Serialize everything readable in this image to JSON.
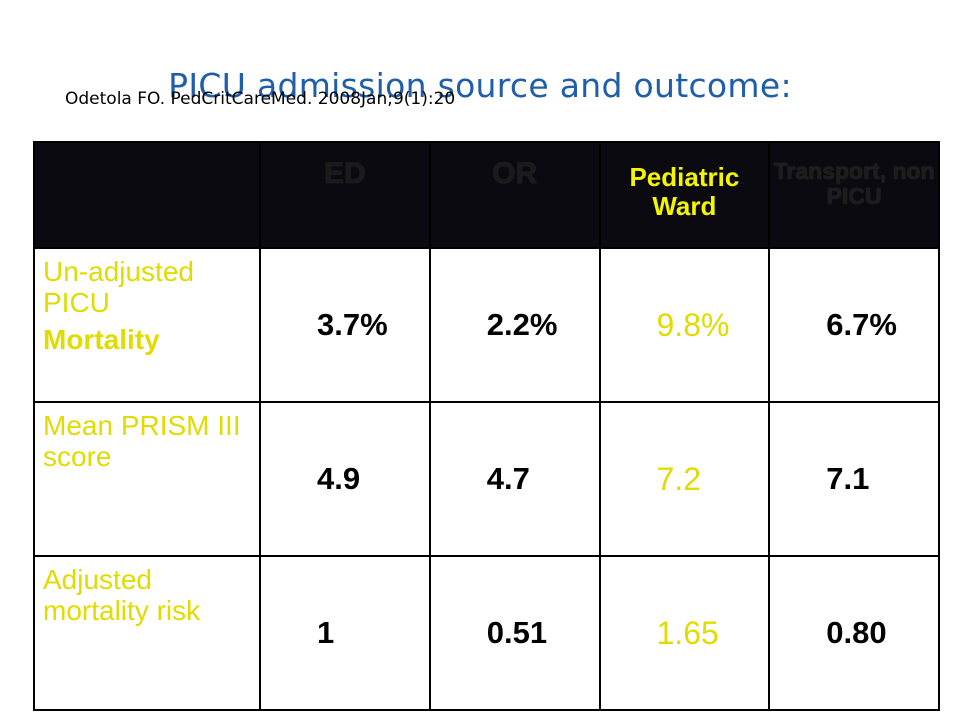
{
  "title": "PICU admission source and outcome:",
  "citation": "Odetola FO. PedCritCareMed. 2008Jan;9(1):20",
  "table": {
    "headers": [
      "",
      "ED",
      "OR",
      "Pediatric Ward",
      "Transport, non PICU"
    ],
    "rows": [
      {
        "label_lines": [
          "Un-adjusted PICU"
        ],
        "label_bold": "Mortality",
        "values": [
          "3.7%",
          "2.2%",
          "9.8%",
          "6.7%"
        ]
      },
      {
        "label_lines": [
          "Mean PRISM III score"
        ],
        "label_bold": "",
        "values": [
          "4.9",
          "4.7",
          "7.2",
          "7.1"
        ]
      },
      {
        "label_lines": [
          "Adjusted mortality risk"
        ],
        "label_bold": "",
        "values": [
          "1",
          "0.51",
          "1.65",
          "0.80"
        ]
      }
    ]
  },
  "colors": {
    "title": "#1f5ea8",
    "header_bg": "#0a0a10",
    "highlight": "#e0dc00"
  }
}
